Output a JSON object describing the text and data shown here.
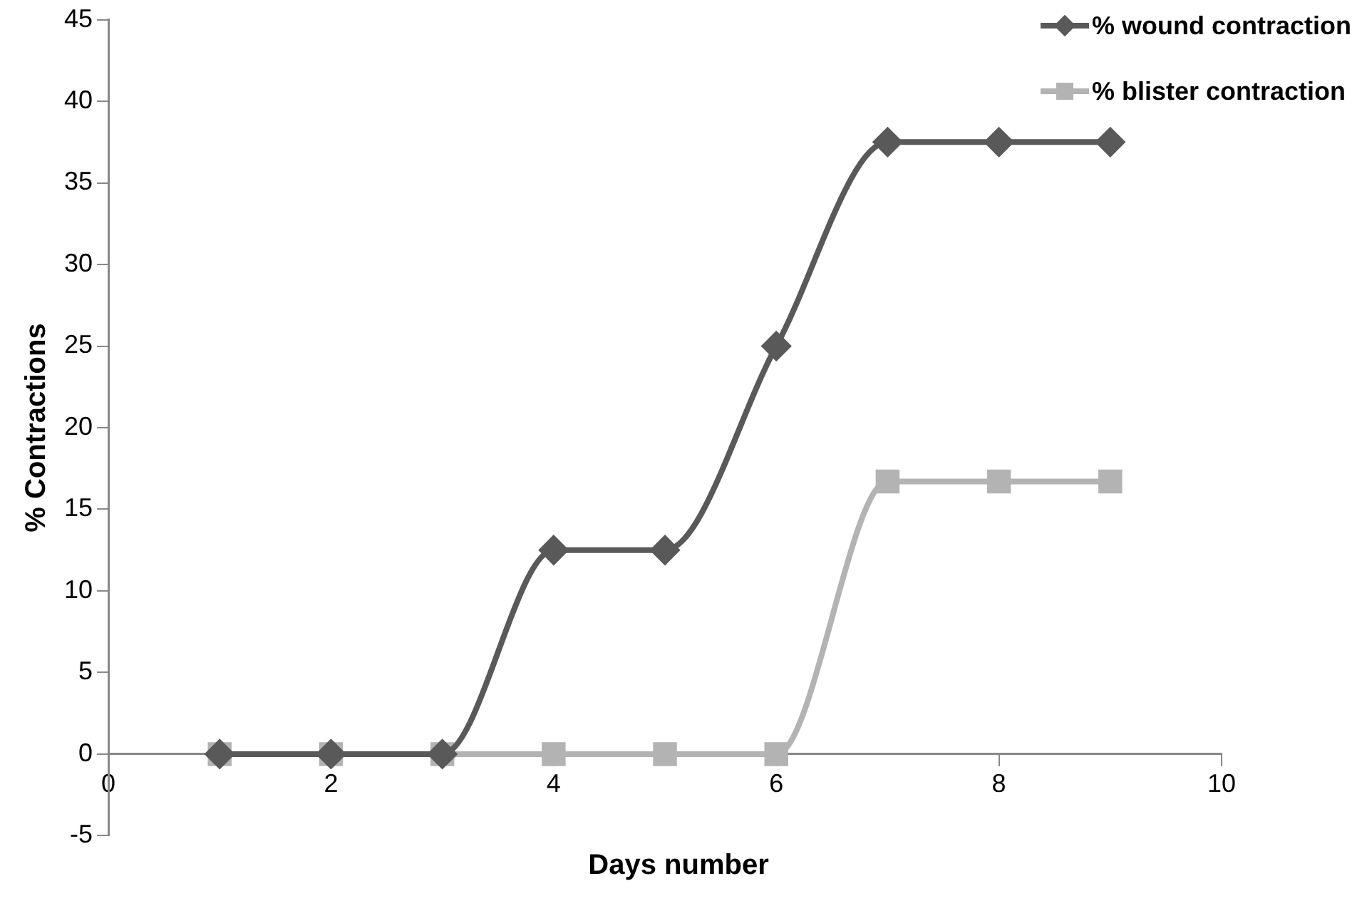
{
  "chart_data": {
    "type": "line",
    "xlabel": "Days number",
    "ylabel": "% Contractions",
    "x": [
      1,
      2,
      3,
      4,
      5,
      6,
      7,
      8,
      9
    ],
    "series": [
      {
        "name": "% wound contraction",
        "color": "#595959",
        "marker": "diamond",
        "values": [
          0,
          0,
          0,
          12.5,
          12.5,
          25,
          37.5,
          37.5,
          37.5
        ]
      },
      {
        "name": "% blister contraction",
        "color": "#b3b3b3",
        "marker": "square",
        "values": [
          0,
          0,
          0,
          0,
          0,
          0,
          16.7,
          16.7,
          16.7
        ]
      }
    ],
    "xlim": [
      0,
      10
    ],
    "xticks": [
      0,
      2,
      4,
      6,
      8,
      10
    ],
    "ylim": [
      -5,
      45
    ],
    "yticks": [
      -5,
      0,
      5,
      10,
      15,
      20,
      25,
      30,
      35,
      40,
      45
    ],
    "grid": false,
    "legend": "top right"
  }
}
